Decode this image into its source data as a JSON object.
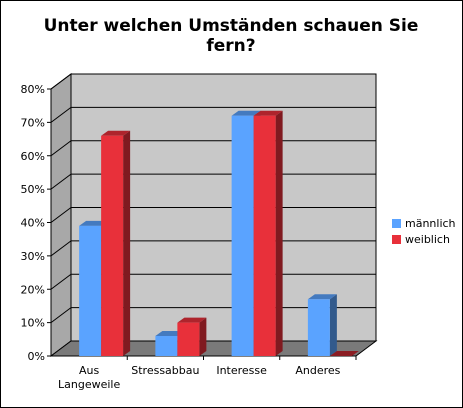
{
  "chart_data": {
    "type": "bar",
    "title": "Unter welchen Umständen schauen Sie fern?",
    "categories": [
      "Aus Langeweile",
      "Stressabbau",
      "Interesse",
      "Anderes"
    ],
    "series": [
      {
        "name": "männlich",
        "values": [
          39,
          6,
          72,
          17
        ],
        "color": "#5aa3ff"
      },
      {
        "name": "weiblich",
        "values": [
          66,
          10,
          72,
          0
        ],
        "color": "#e8303a"
      }
    ],
    "ylim": [
      0,
      80
    ],
    "yticks": [
      "0%",
      "10%",
      "20%",
      "30%",
      "40%",
      "50%",
      "60%",
      "70%",
      "80%"
    ],
    "grid": true,
    "legend": "right",
    "style": "3d",
    "plot_background": "#c8c8c8"
  }
}
